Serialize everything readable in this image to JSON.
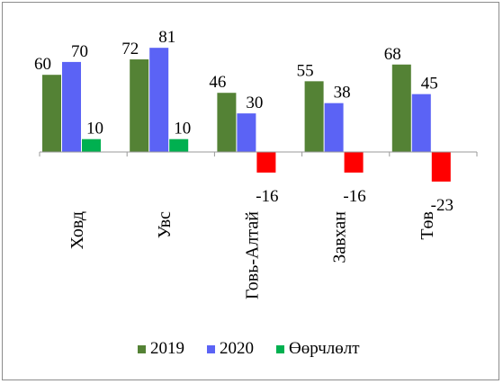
{
  "chart_data": {
    "type": "bar",
    "categories": [
      "Ховд",
      "Увс",
      "Говь-Алтай",
      "Завхан",
      "Төв"
    ],
    "series": [
      {
        "name": "2019",
        "values": [
          60,
          72,
          46,
          55,
          68
        ],
        "color": "#548235"
      },
      {
        "name": "2020",
        "values": [
          70,
          81,
          30,
          38,
          45
        ],
        "color": "#5b63f5"
      },
      {
        "name": "Өөрчлөлт",
        "values": [
          10,
          10,
          -16,
          -16,
          -23
        ],
        "color": "#00b050",
        "negative_color": "#ff0000"
      }
    ],
    "title": "",
    "xlabel": "",
    "ylabel": "",
    "legend_position": "bottom",
    "grid": false,
    "data_labels": true
  }
}
